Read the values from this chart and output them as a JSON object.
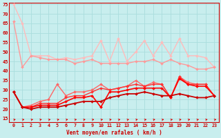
{
  "xlabel": "Vent moyen/en rafales ( km/h )",
  "xlim": [
    -0.5,
    23.5
  ],
  "ylim": [
    13,
    76
  ],
  "yticks": [
    15,
    20,
    25,
    30,
    35,
    40,
    45,
    50,
    55,
    60,
    65,
    70,
    75
  ],
  "xticks": [
    0,
    1,
    2,
    3,
    4,
    5,
    6,
    7,
    8,
    9,
    10,
    11,
    12,
    13,
    14,
    15,
    16,
    17,
    18,
    19,
    20,
    21,
    22,
    23
  ],
  "bg_color": "#c8eeee",
  "grid_color": "#aadddd",
  "series": [
    {
      "color": "#ffbbbb",
      "linewidth": 1.0,
      "marker": "D",
      "markersize": 2.0,
      "data": [
        75,
        65,
        48,
        48,
        48,
        46,
        47,
        46,
        47,
        48,
        56,
        45,
        57,
        45,
        50,
        56,
        48,
        55,
        48,
        57,
        48,
        48,
        47,
        42
      ]
    },
    {
      "color": "#ff9999",
      "linewidth": 1.0,
      "marker": "D",
      "markersize": 2.0,
      "data": [
        66,
        42,
        48,
        47,
        46,
        46,
        46,
        44,
        45,
        46,
        44,
        44,
        44,
        44,
        45,
        45,
        46,
        44,
        46,
        44,
        43,
        41,
        41,
        42
      ]
    },
    {
      "color": "#ff6666",
      "linewidth": 1.0,
      "marker": "D",
      "markersize": 2.0,
      "data": [
        29,
        21,
        22,
        24,
        25,
        33,
        27,
        29,
        29,
        30,
        33,
        30,
        31,
        32,
        35,
        32,
        34,
        33,
        26,
        37,
        34,
        33,
        33,
        27
      ]
    },
    {
      "color": "#ff3333",
      "linewidth": 1.0,
      "marker": "D",
      "markersize": 2.0,
      "data": [
        29,
        21,
        21,
        23,
        23,
        23,
        26,
        27,
        27,
        29,
        31,
        30,
        31,
        32,
        33,
        32,
        33,
        33,
        26,
        37,
        33,
        33,
        33,
        27
      ]
    },
    {
      "color": "#ff0000",
      "linewidth": 1.2,
      "marker": "D",
      "markersize": 2.0,
      "data": [
        29,
        21,
        21,
        22,
        22,
        22,
        24,
        26,
        26,
        27,
        21,
        29,
        29,
        30,
        31,
        31,
        31,
        31,
        26,
        36,
        33,
        32,
        32,
        27
      ]
    },
    {
      "color": "#cc0000",
      "linewidth": 1.3,
      "marker": "D",
      "markersize": 2.0,
      "data": [
        29,
        21,
        20,
        21,
        21,
        21,
        22,
        23,
        24,
        24,
        24,
        26,
        27,
        28,
        28,
        29,
        28,
        27,
        27,
        28,
        27,
        26,
        26,
        27
      ]
    }
  ],
  "arrow_color": "#dd0000",
  "tick_color": "#cc0000",
  "label_color": "#cc0000",
  "spine_color": "#cc0000"
}
